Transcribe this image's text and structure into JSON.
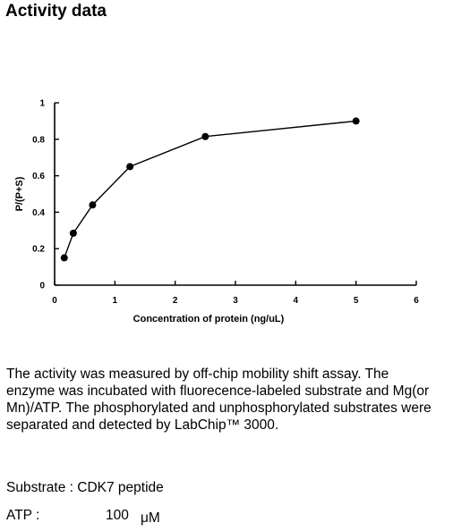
{
  "heading": "Activity data",
  "chart_data": {
    "type": "line",
    "xlabel": "Concentration of protein (ng/uL)",
    "ylabel": "P/(P+S)",
    "xlim": [
      0,
      6
    ],
    "ylim": [
      0,
      1
    ],
    "xticks": [
      "0",
      "1",
      "2",
      "3",
      "4",
      "5",
      "6"
    ],
    "yticks": [
      "0",
      "0.2",
      "0.4",
      "0.6",
      "0.8",
      "1"
    ],
    "grid": false,
    "series": [
      {
        "x": [
          0.16,
          0.31,
          0.63,
          1.25,
          2.5,
          5
        ],
        "values": [
          0.15,
          0.285,
          0.44,
          0.65,
          0.815,
          0.9
        ]
      }
    ]
  },
  "description": [
    "The activity was measured by off-chip mobility shift assay. The",
    "enzyme was incubated with fluorecence-labeled  substrate and Mg(or",
    "Mn)/ATP. The phosphorylated and unphosphorylated substrates were",
    "separated and detected by LabChip™ 3000."
  ],
  "substrate_line": "Substrate : CDK7 peptide",
  "atp": {
    "label": "ATP :",
    "value": "100",
    "unit": "μM"
  }
}
